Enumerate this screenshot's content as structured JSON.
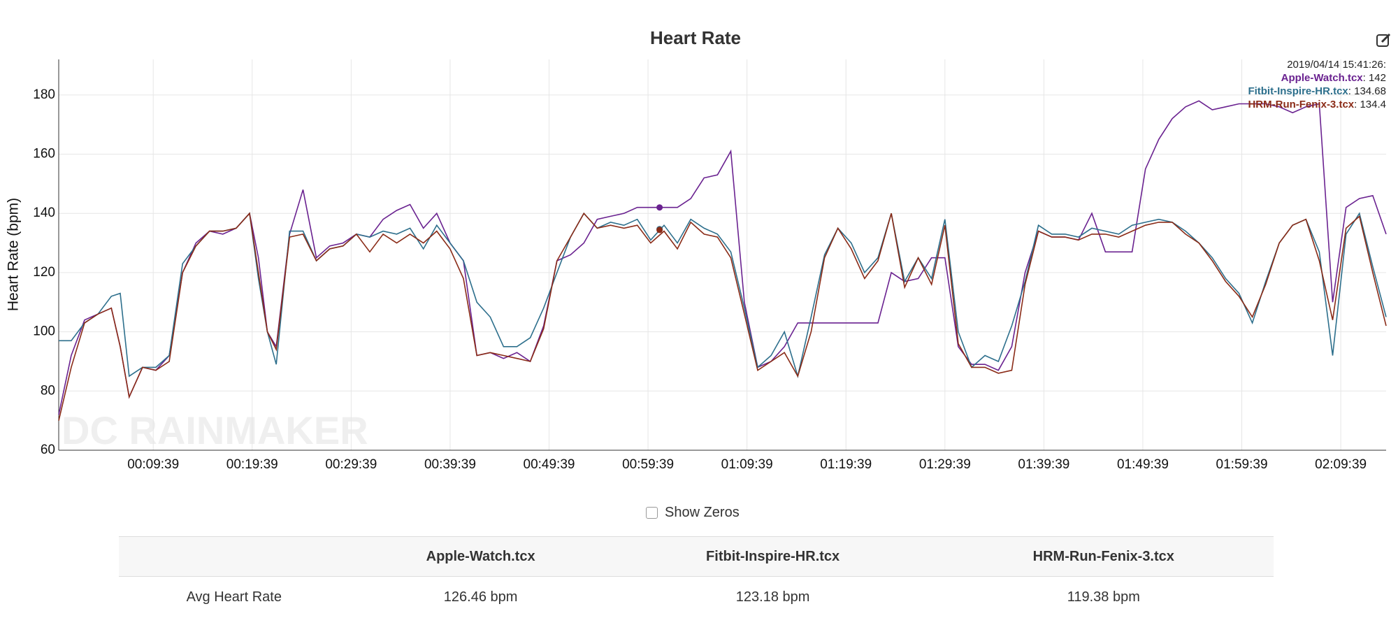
{
  "chart_data": {
    "type": "line",
    "title": "Heart Rate",
    "y_label": "Heart Rate (bpm)",
    "watermark": "DC RAINMAKER",
    "grid": true,
    "xlim": [
      6,
      8054
    ],
    "ylim": [
      60,
      192
    ],
    "yticks": [
      60,
      80,
      100,
      120,
      140,
      160,
      180
    ],
    "xticks": [
      {
        "value": 579,
        "label": "00:09:39"
      },
      {
        "value": 1179,
        "label": "00:19:39"
      },
      {
        "value": 1779,
        "label": "00:29:39"
      },
      {
        "value": 2379,
        "label": "00:39:39"
      },
      {
        "value": 2979,
        "label": "00:49:39"
      },
      {
        "value": 3579,
        "label": "00:59:39"
      },
      {
        "value": 4179,
        "label": "01:09:39"
      },
      {
        "value": 4779,
        "label": "01:19:39"
      },
      {
        "value": 5379,
        "label": "01:29:39"
      },
      {
        "value": 5979,
        "label": "01:39:39"
      },
      {
        "value": 6579,
        "label": "01:49:39"
      },
      {
        "value": 7179,
        "label": "01:59:39"
      },
      {
        "value": 7779,
        "label": "02:09:39"
      }
    ],
    "x": [
      6,
      82,
      163,
      244,
      325,
      379,
      433,
      514,
      595,
      676,
      757,
      838,
      920,
      1001,
      1082,
      1163,
      1217,
      1271,
      1325,
      1406,
      1487,
      1568,
      1649,
      1730,
      1811,
      1892,
      1973,
      2055,
      2136,
      2217,
      2298,
      2379,
      2460,
      2541,
      2622,
      2703,
      2784,
      2865,
      2946,
      3027,
      3109,
      3190,
      3271,
      3352,
      3433,
      3514,
      3595,
      3676,
      3757,
      3838,
      3919,
      4000,
      4081,
      4163,
      4244,
      4325,
      4406,
      4487,
      4568,
      4649,
      4730,
      4811,
      4892,
      4973,
      5054,
      5135,
      5217,
      5298,
      5379,
      5460,
      5541,
      5622,
      5703,
      5784,
      5865,
      5946,
      6027,
      6108,
      6189,
      6270,
      6352,
      6433,
      6514,
      6595,
      6676,
      6757,
      6838,
      6919,
      7000,
      7081,
      7162,
      7243,
      7324,
      7406,
      7487,
      7568,
      7649,
      7730,
      7811,
      7892,
      7973,
      8054
    ],
    "series": [
      {
        "name": "Apple-Watch.tcx",
        "color": "#6a2290",
        "values": [
          72,
          92,
          104,
          106,
          108,
          95,
          78,
          88,
          87,
          92,
          120,
          130,
          134,
          133,
          135,
          140,
          125,
          100,
          95,
          133,
          148,
          125,
          129,
          130,
          133,
          132,
          138,
          141,
          143,
          135,
          140,
          130,
          124,
          92,
          93,
          91,
          93,
          90,
          102,
          124,
          126,
          130,
          138,
          139,
          140,
          142,
          142,
          142,
          142,
          145,
          152,
          153,
          161,
          110,
          88,
          90,
          95,
          103,
          103,
          103,
          103,
          103,
          103,
          103,
          120,
          117,
          118,
          125,
          125,
          95,
          89,
          89,
          87,
          95,
          120,
          134,
          132,
          132,
          131,
          140,
          127,
          127,
          127,
          155,
          165,
          172,
          176,
          178,
          175,
          176,
          177,
          177,
          177,
          176,
          174,
          176,
          177,
          110,
          142,
          145,
          146,
          133
        ]
      },
      {
        "name": "Fitbit-Inspire-HR.tcx",
        "color": "#2d6f8c",
        "values": [
          97,
          97,
          103,
          106,
          112,
          113,
          85,
          88,
          88,
          92,
          123,
          129,
          134,
          134,
          135,
          140,
          118,
          100,
          89,
          134,
          134,
          124,
          128,
          129,
          133,
          132,
          134,
          133,
          135,
          128,
          136,
          130,
          124,
          110,
          105,
          95,
          95,
          98,
          108,
          120,
          132,
          140,
          135,
          137,
          136,
          138,
          131,
          136,
          130,
          138,
          135,
          133,
          127,
          108,
          88,
          92,
          100,
          85,
          105,
          126,
          135,
          130,
          120,
          125,
          140,
          117,
          125,
          118,
          138,
          100,
          88,
          92,
          90,
          102,
          117,
          136,
          133,
          133,
          132,
          135,
          134,
          133,
          136,
          137,
          138,
          137,
          134,
          130,
          125,
          118,
          113,
          103,
          117,
          130,
          136,
          138,
          127,
          92,
          133,
          140,
          122,
          105
        ]
      },
      {
        "name": "HRM-Run-Fenix-3.tcx",
        "color": "#8a2b17",
        "values": [
          70,
          88,
          103,
          106,
          108,
          95,
          78,
          88,
          87,
          90,
          120,
          129,
          134,
          134,
          135,
          140,
          120,
          100,
          94,
          132,
          133,
          124,
          128,
          129,
          133,
          127,
          133,
          130,
          133,
          130,
          134,
          128,
          118,
          92,
          93,
          92,
          91,
          90,
          101,
          124,
          132,
          140,
          135,
          136,
          135,
          136,
          130,
          134,
          128,
          137,
          133,
          132,
          125,
          106,
          87,
          90,
          93,
          85,
          100,
          125,
          135,
          128,
          118,
          124,
          140,
          115,
          125,
          116,
          136,
          96,
          88,
          88,
          86,
          87,
          116,
          134,
          132,
          132,
          131,
          133,
          133,
          132,
          134,
          136,
          137,
          137,
          133,
          130,
          124,
          117,
          112,
          105,
          116,
          130,
          136,
          138,
          124,
          104,
          135,
          139,
          120,
          102
        ]
      }
    ],
    "hover": {
      "label": "2019/04/14 15:41:26:",
      "x": 3649,
      "values": [
        142,
        134.68,
        134.4
      ],
      "value_labels": [
        ": 142",
        ": 134.68",
        ": 134.4"
      ]
    }
  },
  "controls": {
    "show_zeros": "Show Zeros"
  },
  "table": {
    "columns": [
      "Apple-Watch.tcx",
      "Fitbit-Inspire-HR.tcx",
      "HRM-Run-Fenix-3.tcx"
    ],
    "rows": [
      {
        "label": "Avg Heart Rate",
        "cells": [
          "126.46 bpm",
          "123.18 bpm",
          "119.38 bpm"
        ]
      }
    ]
  }
}
